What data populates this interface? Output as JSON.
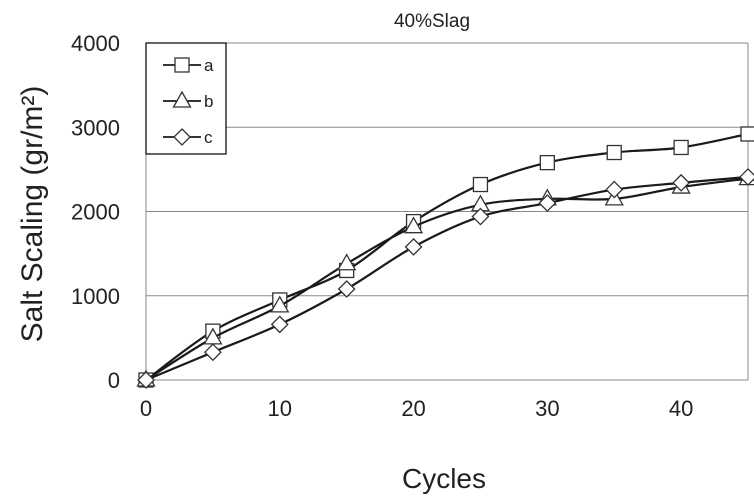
{
  "chart_data": {
    "type": "line",
    "title": "40%Slag",
    "xlabel": "Cycles",
    "ylabel": "Salt Scaling (gr/m²)",
    "xlim": [
      0,
      45
    ],
    "ylim": [
      0,
      4000
    ],
    "x_ticks": [
      0,
      10,
      20,
      30,
      40
    ],
    "y_ticks": [
      0,
      1000,
      2000,
      3000,
      4000
    ],
    "grid": "horizontal",
    "legend_position": "top-left",
    "x": [
      0,
      5,
      10,
      15,
      20,
      25,
      30,
      35,
      40,
      45
    ],
    "series": [
      {
        "name": "a",
        "marker": "square",
        "values": [
          0,
          580,
          950,
          1300,
          1880,
          2320,
          2580,
          2700,
          2760,
          2920
        ]
      },
      {
        "name": "b",
        "marker": "triangle",
        "values": [
          0,
          500,
          880,
          1380,
          1820,
          2080,
          2150,
          2150,
          2290,
          2390
        ]
      },
      {
        "name": "c",
        "marker": "diamond",
        "values": [
          0,
          330,
          660,
          1080,
          1580,
          1940,
          2100,
          2260,
          2340,
          2410
        ]
      }
    ]
  }
}
